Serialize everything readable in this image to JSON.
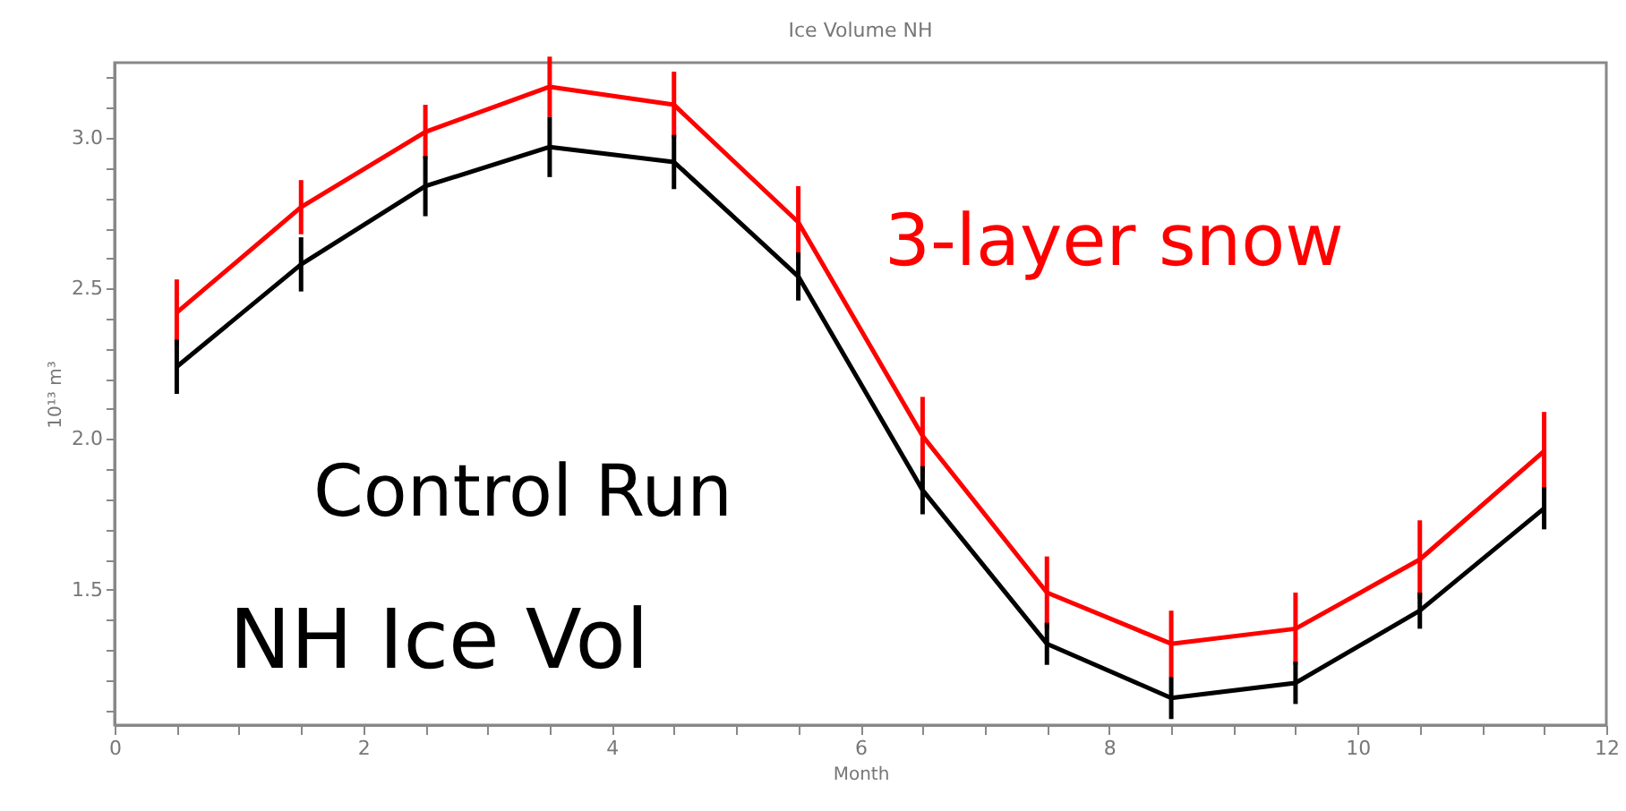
{
  "chart_data": {
    "type": "line",
    "title": "Ice Volume NH",
    "xlabel": "Month",
    "ylabel": "10¹³ m³",
    "x": [
      0.5,
      1.5,
      2.5,
      3.5,
      4.5,
      5.5,
      6.5,
      7.5,
      8.5,
      9.5,
      10.5,
      11.5
    ],
    "series": [
      {
        "name": "3-layer snow",
        "color": "#ff0000",
        "values": [
          2.42,
          2.77,
          3.02,
          3.17,
          3.11,
          2.72,
          2.01,
          1.49,
          1.32,
          1.37,
          1.6,
          1.96
        ],
        "errors": [
          0.11,
          0.09,
          0.09,
          0.1,
          0.11,
          0.12,
          0.13,
          0.12,
          0.11,
          0.12,
          0.13,
          0.13
        ]
      },
      {
        "name": "Control Run",
        "color": "#000000",
        "values": [
          2.24,
          2.58,
          2.84,
          2.97,
          2.92,
          2.54,
          1.83,
          1.32,
          1.14,
          1.19,
          1.43,
          1.77
        ],
        "errors": [
          0.09,
          0.09,
          0.1,
          0.1,
          0.09,
          0.08,
          0.08,
          0.07,
          0.07,
          0.07,
          0.06,
          0.07
        ]
      }
    ],
    "annotations": [
      "NH Ice Vol"
    ],
    "xlim": [
      0,
      12
    ],
    "ylim": [
      1.05,
      3.25
    ],
    "xticks": [
      0,
      {
        "value": 0.5,
        "label": null
      },
      {
        "value": 1,
        "label": null
      },
      {
        "value": 1.5,
        "label": null
      },
      2,
      {
        "value": 2.5,
        "label": null
      },
      {
        "value": 3,
        "label": null
      },
      {
        "value": 3.5,
        "label": null
      },
      4,
      {
        "value": 4.5,
        "label": null
      },
      {
        "value": 5,
        "label": null
      },
      {
        "value": 5.5,
        "label": null
      },
      6,
      {
        "value": 6.5,
        "label": null
      },
      {
        "value": 7,
        "label": null
      },
      {
        "value": 7.5,
        "label": null
      },
      8,
      {
        "value": 8.5,
        "label": null
      },
      {
        "value": 9,
        "label": null
      },
      {
        "value": 9.5,
        "label": null
      },
      10,
      {
        "value": 10.5,
        "label": null
      },
      {
        "value": 11,
        "label": null
      },
      {
        "value": 11.5,
        "label": null
      },
      12
    ],
    "yticks": [
      {
        "value": 1.1,
        "label": null
      },
      {
        "value": 1.2,
        "label": null
      },
      {
        "value": 1.3,
        "label": null
      },
      {
        "value": 1.4,
        "label": null
      },
      {
        "value": 1.5,
        "label": "1.5"
      },
      {
        "value": 1.6,
        "label": null
      },
      {
        "value": 1.7,
        "label": null
      },
      {
        "value": 1.8,
        "label": null
      },
      {
        "value": 1.9,
        "label": null
      },
      {
        "value": 2,
        "label": "2.0"
      },
      {
        "value": 2.1,
        "label": null
      },
      {
        "value": 2.2,
        "label": null
      },
      {
        "value": 2.3,
        "label": null
      },
      {
        "value": 2.4,
        "label": null
      },
      {
        "value": 2.5,
        "label": "2.5"
      },
      {
        "value": 2.6,
        "label": null
      },
      {
        "value": 2.7,
        "label": null
      },
      {
        "value": 2.8,
        "label": null
      },
      {
        "value": 2.9,
        "label": null
      },
      {
        "value": 3,
        "label": "3.0"
      },
      {
        "value": 3.1,
        "label": null
      },
      {
        "value": 3.2,
        "label": null
      }
    ],
    "grid": false,
    "legend": false,
    "marker": "none",
    "line_style": "solid"
  }
}
